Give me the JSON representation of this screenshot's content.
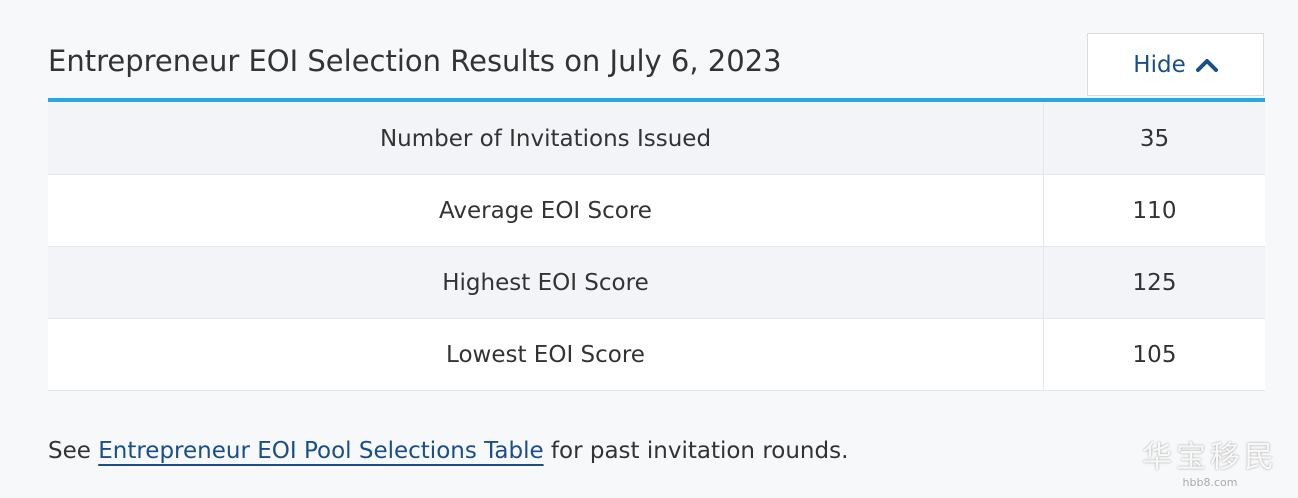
{
  "header": {
    "title": "Entrepreneur EOI Selection Results on July 6, 2023",
    "toggle": "Hide"
  },
  "table": {
    "rows": [
      [
        "Number of Invitations Issued",
        35
      ],
      [
        "Average EOI Score",
        110
      ],
      [
        "Highest EOI Score",
        125
      ],
      [
        "Lowest EOI Score",
        105
      ]
    ]
  },
  "footer": {
    "before": "See",
    "link": "Entrepreneur EOI Pool Selections Table",
    "after": "for past invitation rounds."
  },
  "watermark": {
    "name": "华宝移民",
    "site": "hbb8.com"
  }
}
